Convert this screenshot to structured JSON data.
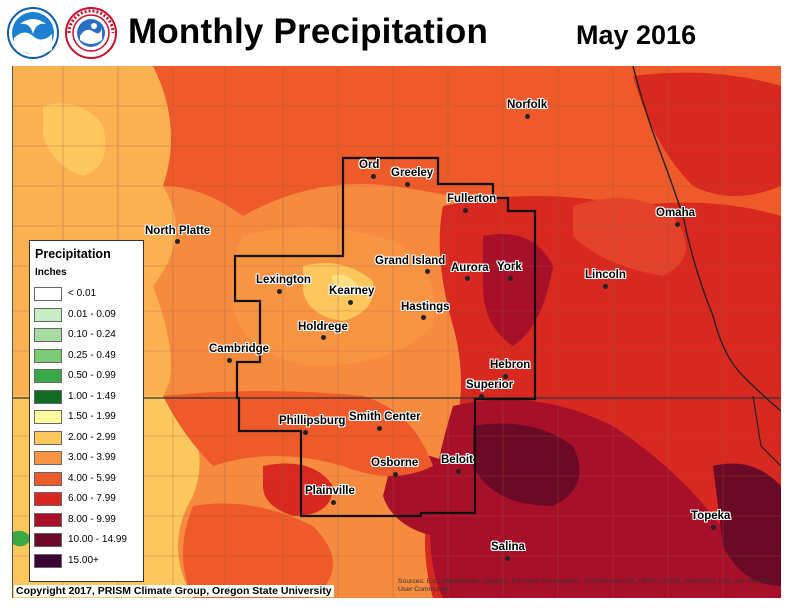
{
  "header": {
    "title": "Monthly Precipitation",
    "period": "May 2016"
  },
  "logos": [
    {
      "name": "noaa-logo",
      "text": "NOAA",
      "color": "#0b5ea8"
    },
    {
      "name": "nws-logo",
      "text": "NATIONAL WEATHER SERVICE",
      "color": "#c8102e"
    }
  ],
  "legend": {
    "title": "Precipitation",
    "units": "Inches",
    "classes": [
      {
        "label": "< 0.01",
        "color": "#ffffff"
      },
      {
        "label": "0.01 - 0.09",
        "color": "#c8ecc4"
      },
      {
        "label": "0.10 - 0.24",
        "color": "#a6dca0"
      },
      {
        "label": "0.25 - 0.49",
        "color": "#7ccb76"
      },
      {
        "label": "0.50 - 0.99",
        "color": "#3aa845"
      },
      {
        "label": "1.00 - 1.49",
        "color": "#116b22"
      },
      {
        "label": "1.50 - 1.99",
        "color": "#fffa9e"
      },
      {
        "label": "2.00 - 2.99",
        "color": "#fcc75d"
      },
      {
        "label": "3.00 - 3.99",
        "color": "#f99443"
      },
      {
        "label": "4.00 - 5.99",
        "color": "#ee5a2a"
      },
      {
        "label": "6.00 - 7.99",
        "color": "#d8281f"
      },
      {
        "label": "8.00 - 9.99",
        "color": "#a8102a"
      },
      {
        "label": "10.00 - 14.99",
        "color": "#6b0a26"
      },
      {
        "label": "15.00+",
        "color": "#3a0532"
      }
    ]
  },
  "cities": [
    {
      "name": "Norfolk"
    },
    {
      "name": "Ord"
    },
    {
      "name": "Greeley"
    },
    {
      "name": "Fullerton"
    },
    {
      "name": "Omaha"
    },
    {
      "name": "North Platte"
    },
    {
      "name": "Grand Island"
    },
    {
      "name": "Aurora"
    },
    {
      "name": "York"
    },
    {
      "name": "Lincoln"
    },
    {
      "name": "Lexington"
    },
    {
      "name": "Kearney"
    },
    {
      "name": "Hastings"
    },
    {
      "name": "Holdrege"
    },
    {
      "name": "Cambridge"
    },
    {
      "name": "Hebron"
    },
    {
      "name": "Superior"
    },
    {
      "name": "Phillipsburg"
    },
    {
      "name": "Smith Center"
    },
    {
      "name": "Osborne"
    },
    {
      "name": "Beloit"
    },
    {
      "name": "Plainville"
    },
    {
      "name": "Topeka"
    },
    {
      "name": "Salina"
    }
  ],
  "footer": {
    "copyright": "Copyright 2017, PRISM Climate Group, Oregon State University",
    "sources": "Sources: Esri, DigitalGlobe, GeoEye, Earthstar Geographics, CNES/Airbus DS, USDA, USGS, AeroGRID, IGN, and the GIS User Community"
  }
}
